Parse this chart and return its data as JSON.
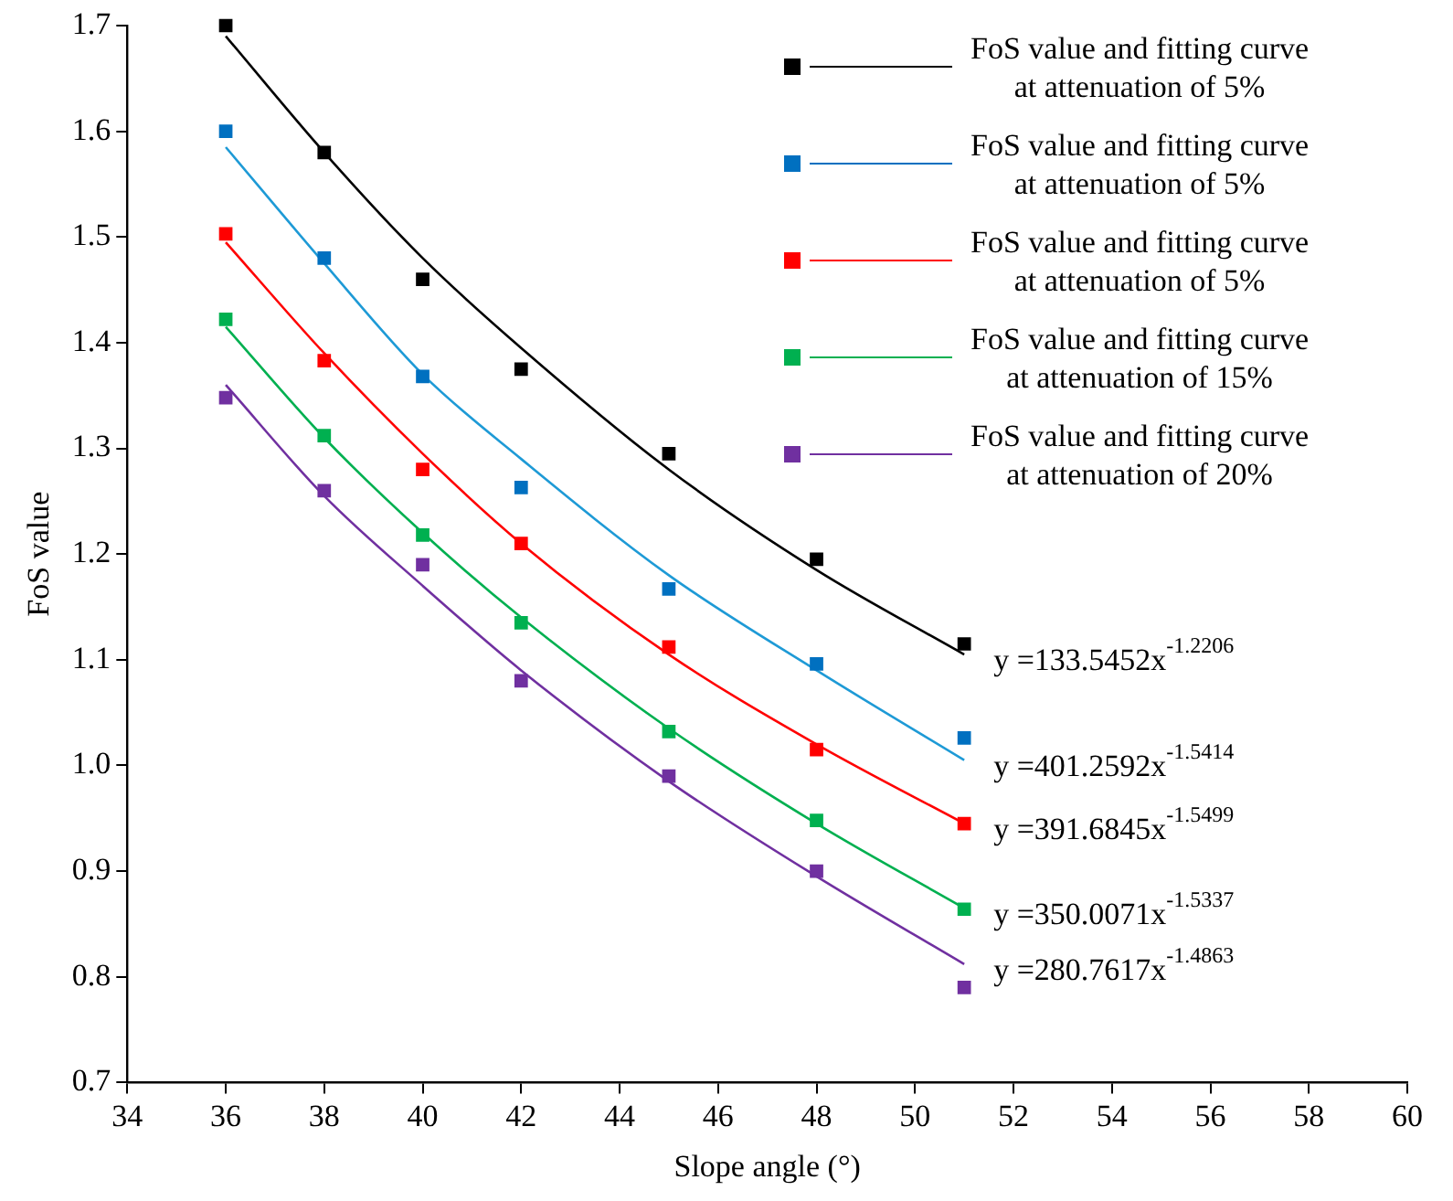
{
  "chart_data": {
    "type": "scatter",
    "xlabel": "Slope angle (°)",
    "ylabel": "FoS value",
    "x": [
      36,
      38,
      40,
      42,
      45,
      48,
      51
    ],
    "xlim": [
      34,
      60
    ],
    "xticks": [
      34,
      36,
      38,
      40,
      42,
      44,
      46,
      48,
      50,
      52,
      54,
      56,
      58,
      60
    ],
    "ylim": [
      0.7,
      1.7
    ],
    "yticks": [
      0.7,
      0.8,
      0.9,
      {
        "value": 1,
        "label": "1.0"
      },
      1.1,
      1.2,
      1.3,
      1.4,
      1.5,
      1.6,
      1.7
    ],
    "grid": false,
    "legend": "top right",
    "marker": "square",
    "series": [
      {
        "name": "FoS value and fitting curve\nat attenuation of 5%",
        "color": "#000000",
        "values": [
          1.7,
          1.58,
          1.46,
          1.375,
          1.295,
          1.195,
          1.115
        ]
      },
      {
        "name": "FoS value and fitting curve\nat attenuation of 5%",
        "color": "#0070c0",
        "values": [
          1.6,
          1.48,
          1.368,
          1.263,
          1.167,
          1.096,
          1.026
        ]
      },
      {
        "name": "FoS value and fitting curve\nat attenuation of 5%",
        "color": "#ff0000",
        "values": [
          1.503,
          1.383,
          1.28,
          1.21,
          1.112,
          1.015,
          0.945
        ]
      },
      {
        "name": "FoS value and fitting curve\nat attenuation of 15%",
        "color": "#00b050",
        "values": [
          1.422,
          1.312,
          1.218,
          1.135,
          1.032,
          0.948,
          0.864
        ]
      },
      {
        "name": "FoS value and fitting curve\nat attenuation of 20%",
        "color": "#7030a0",
        "values": [
          1.348,
          1.26,
          1.19,
          1.08,
          0.99,
          0.9,
          0.79
        ]
      },
      {
        "type": "line",
        "color": "#000000",
        "marker": "none",
        "x": [
          36,
          38,
          40,
          42,
          45,
          48,
          51
        ],
        "values": [
          1.69,
          1.58,
          1.48,
          1.395,
          1.28,
          1.185,
          1.105
        ]
      },
      {
        "type": "line",
        "color": "#1e9ad6",
        "marker": "none",
        "x": [
          36,
          38,
          40,
          42,
          45,
          48,
          51
        ],
        "values": [
          1.585,
          1.475,
          1.37,
          1.29,
          1.18,
          1.09,
          1.005
        ]
      },
      {
        "type": "line",
        "color": "#ff0000",
        "marker": "none",
        "x": [
          36,
          38,
          40,
          42,
          45,
          48,
          51
        ],
        "values": [
          1.495,
          1.39,
          1.295,
          1.21,
          1.105,
          1.02,
          0.945
        ]
      },
      {
        "type": "line",
        "color": "#00b050",
        "marker": "none",
        "x": [
          36,
          38,
          40,
          42,
          45,
          48,
          51
        ],
        "values": [
          1.415,
          1.31,
          1.22,
          1.14,
          1.035,
          0.945,
          0.865
        ]
      },
      {
        "type": "line",
        "color": "#7030a0",
        "marker": "none",
        "x": [
          36,
          38,
          40,
          42,
          45,
          48,
          51
        ],
        "values": [
          1.36,
          1.255,
          1.17,
          1.09,
          0.985,
          0.895,
          0.812
        ]
      }
    ],
    "annotations": [
      "y =133.5452x$^{-1.2206}$",
      "y =401.2592x$^{-1.5414}$",
      "y =391.6845x$^{-1.5499}$",
      "y =350.0071x$^{-1.5337}$",
      "y =280.7617x$^{-1.4863}$"
    ]
  }
}
